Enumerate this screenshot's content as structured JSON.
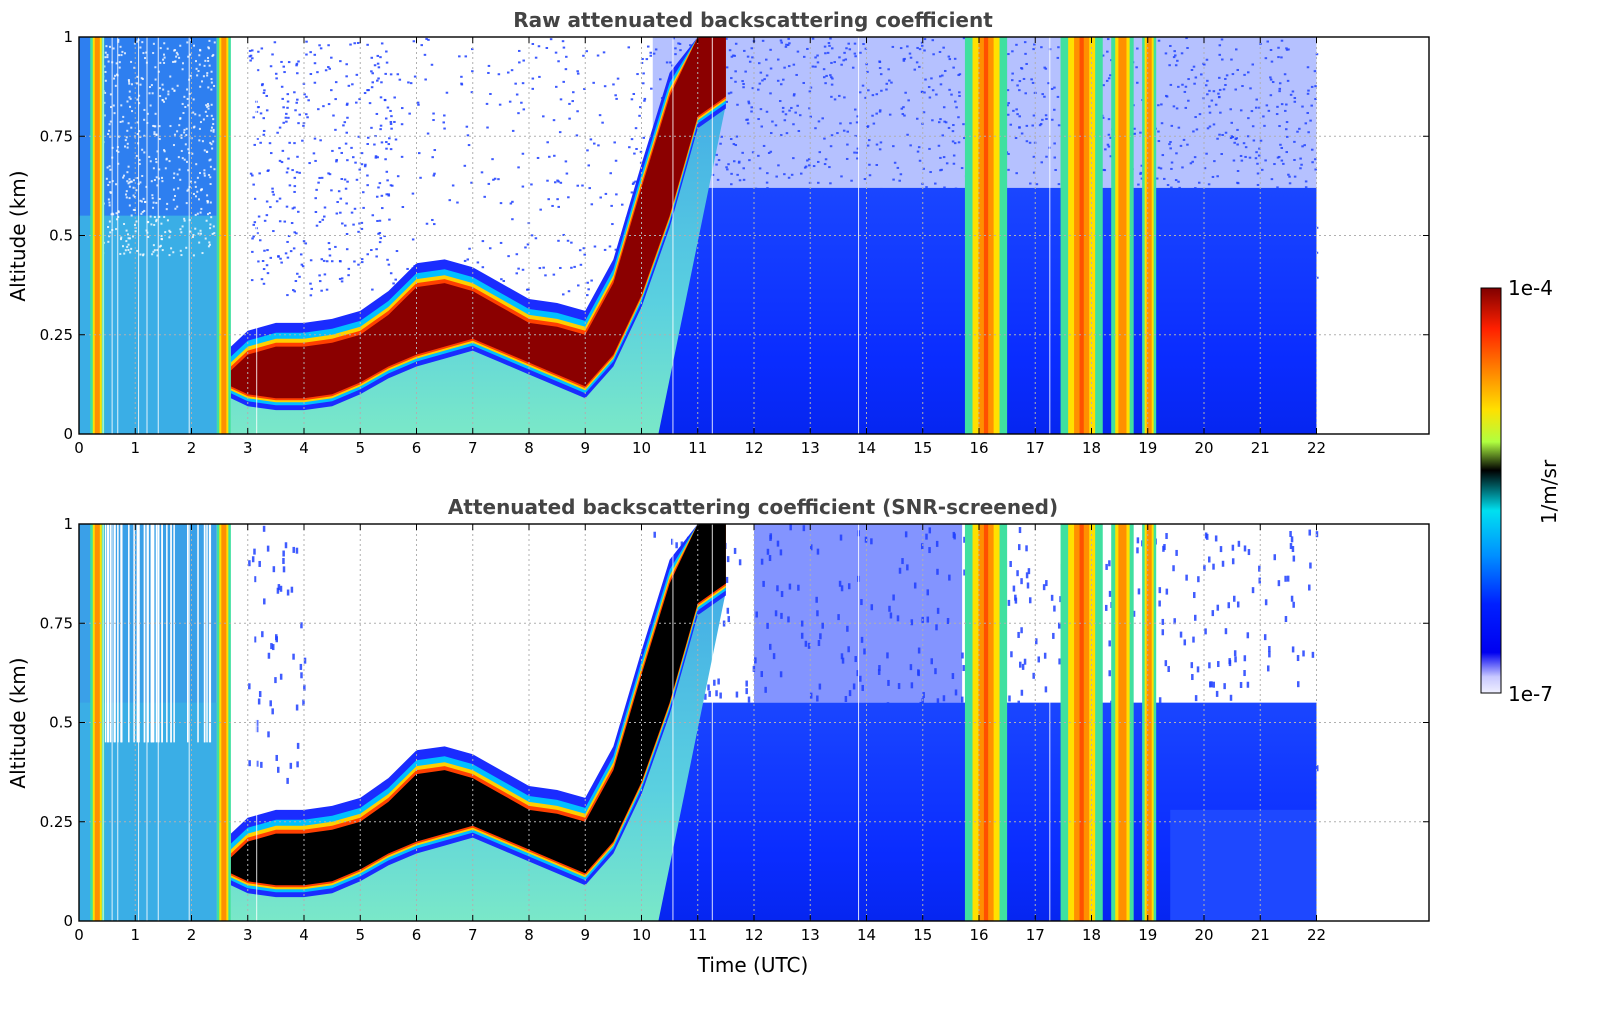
{
  "chart_data": [
    {
      "type": "heatmap",
      "title": "Raw attenuated backscattering coefficient",
      "xlabel": "",
      "ylabel": "Altitude (km)",
      "x_ticks": [
        "0",
        "1",
        "2",
        "3",
        "4",
        "5",
        "6",
        "7",
        "8",
        "9",
        "10",
        "11",
        "12",
        "13",
        "14",
        "15",
        "16",
        "17",
        "18",
        "19",
        "20",
        "21",
        "22"
      ],
      "y_ticks": [
        "0",
        "0.25",
        "0.5",
        "0.75",
        "1"
      ],
      "xlim": [
        0,
        24
      ],
      "ylim": [
        0,
        1
      ],
      "data_x_extent": [
        0,
        22
      ],
      "grid": true,
      "colorscale": "jet",
      "log_scale": true,
      "clim": [
        1e-07,
        0.0001
      ],
      "features": {
        "cloud_base_top_km": [
          [
            2.7,
            0.16,
            0.12
          ],
          [
            3.0,
            0.2,
            0.1
          ],
          [
            3.5,
            0.22,
            0.09
          ],
          [
            4.0,
            0.22,
            0.09
          ],
          [
            4.5,
            0.23,
            0.1
          ],
          [
            5.0,
            0.25,
            0.13
          ],
          [
            5.5,
            0.3,
            0.17
          ],
          [
            6.0,
            0.37,
            0.2
          ],
          [
            6.5,
            0.38,
            0.22
          ],
          [
            7.0,
            0.36,
            0.24
          ],
          [
            7.5,
            0.32,
            0.21
          ],
          [
            8.0,
            0.28,
            0.18
          ],
          [
            8.5,
            0.27,
            0.15
          ],
          [
            9.0,
            0.25,
            0.12
          ],
          [
            9.5,
            0.38,
            0.2
          ],
          [
            10.0,
            0.62,
            0.35
          ],
          [
            10.5,
            0.85,
            0.55
          ],
          [
            11.0,
            1.0,
            0.8
          ],
          [
            11.5,
            1.0,
            0.85
          ]
        ],
        "fog_bands_hours": [
          [
            0.2,
            0.45
          ],
          [
            2.45,
            2.7
          ],
          [
            15.75,
            16.5
          ],
          [
            17.45,
            18.2
          ],
          [
            18.35,
            18.75
          ],
          [
            18.9,
            19.15
          ]
        ]
      }
    },
    {
      "type": "heatmap",
      "title": "Attenuated backscattering coefficient (SNR-screened)",
      "xlabel": "Time (UTC)",
      "ylabel": "Altitude (km)",
      "x_ticks": [
        "0",
        "1",
        "2",
        "3",
        "4",
        "5",
        "6",
        "7",
        "8",
        "9",
        "10",
        "11",
        "12",
        "13",
        "14",
        "15",
        "16",
        "17",
        "18",
        "19",
        "20",
        "21",
        "22"
      ],
      "y_ticks": [
        "0",
        "0.25",
        "0.5",
        "0.75",
        "1"
      ],
      "xlim": [
        0,
        24
      ],
      "ylim": [
        0,
        1
      ],
      "data_x_extent": [
        0,
        22
      ],
      "grid": true,
      "colorscale": "jet",
      "log_scale": true,
      "clim": [
        1e-07,
        0.0001
      ],
      "screened_values_color": "#000000"
    }
  ],
  "colorbar": {
    "label": "1/m/sr",
    "max_label": "1e-4",
    "min_label": "1e-7"
  }
}
